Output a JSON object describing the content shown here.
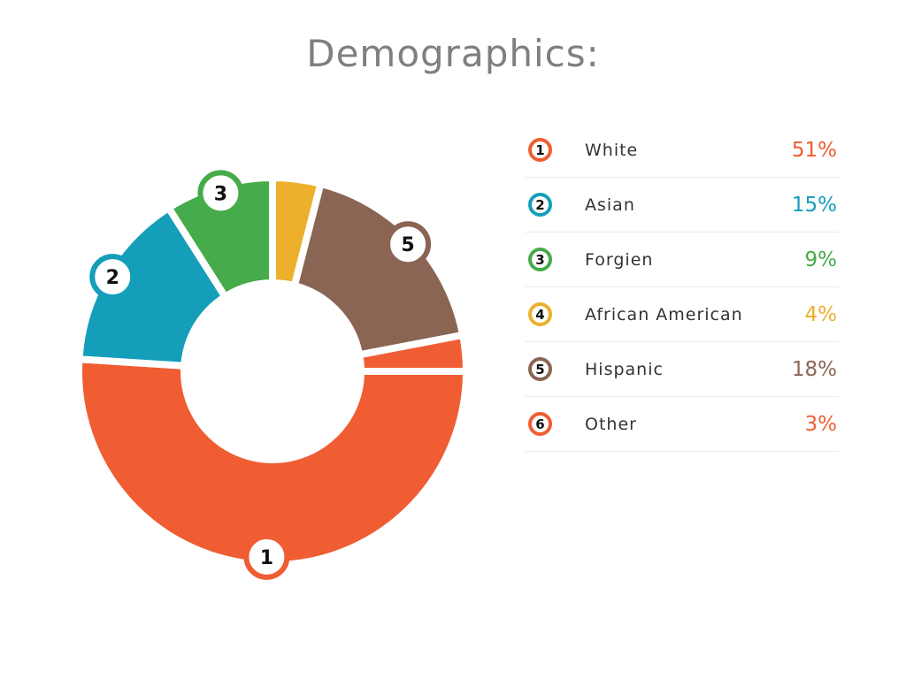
{
  "chart_data": {
    "type": "pie",
    "variant": "donut",
    "title": "Demographics:",
    "start": "3 o'clock, clockwise",
    "slices": [
      {
        "id": "1",
        "label": "White",
        "value": 51,
        "display": "51%",
        "color": "#f05d33",
        "badge": true
      },
      {
        "id": "2",
        "label": "Asian",
        "value": 15,
        "display": "15%",
        "color": "#149eba",
        "badge": true
      },
      {
        "id": "3",
        "label": "Forgien",
        "value": 9,
        "display": "9%",
        "color": "#46ab4a",
        "badge": true
      },
      {
        "id": "4",
        "label": "African American",
        "value": 4,
        "display": "4%",
        "color": "#ecb02c",
        "badge": false
      },
      {
        "id": "5",
        "label": "Hispanic",
        "value": 18,
        "display": "18%",
        "color": "#8a6553",
        "badge": true
      },
      {
        "id": "6",
        "label": "Other",
        "value": 3,
        "display": "3%",
        "color": "#f05d33",
        "badge": false
      }
    ]
  }
}
